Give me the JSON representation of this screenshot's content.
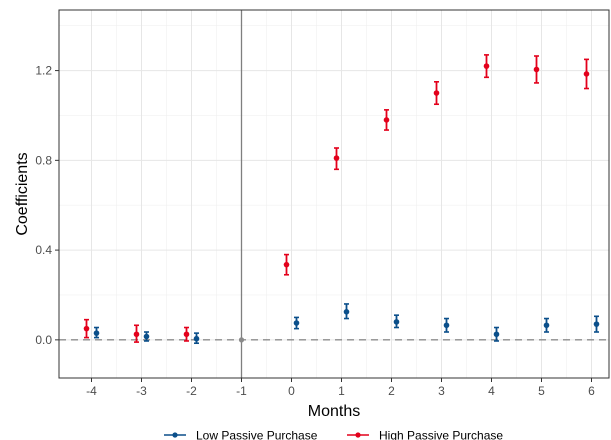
{
  "chart_data": {
    "type": "scatter",
    "xlabel": "Months",
    "ylabel": "Coefficients",
    "x_ticks": [
      -4,
      -3,
      -2,
      -1,
      0,
      1,
      2,
      3,
      4,
      5,
      6
    ],
    "x_tick_labels": [
      "-4",
      "-3",
      "-2",
      "-1",
      "0",
      "1",
      "2",
      "3",
      "4",
      "5",
      "6"
    ],
    "y_ticks": [
      0.0,
      0.4,
      0.8,
      1.2
    ],
    "y_tick_labels": [
      "0.0",
      "0.4",
      "0.8",
      "1.2"
    ],
    "xlim": [
      -4.65,
      6.35
    ],
    "ylim": [
      -0.17,
      1.47
    ],
    "reference_hline": 0,
    "reference_vline": -1,
    "grid": true,
    "legend_position": "bottom",
    "series": [
      {
        "name": "Low Passive Purchase",
        "color": "#0b4f8a",
        "offset": 0.1,
        "points": [
          {
            "x": -4,
            "y": 0.03,
            "lo": 0.01,
            "hi": 0.055
          },
          {
            "x": -3,
            "y": 0.015,
            "lo": -0.005,
            "hi": 0.035
          },
          {
            "x": -2,
            "y": 0.005,
            "lo": -0.015,
            "hi": 0.03
          },
          {
            "x": 0,
            "y": 0.075,
            "lo": 0.05,
            "hi": 0.1
          },
          {
            "x": 1,
            "y": 0.125,
            "lo": 0.095,
            "hi": 0.16
          },
          {
            "x": 2,
            "y": 0.08,
            "lo": 0.055,
            "hi": 0.11
          },
          {
            "x": 3,
            "y": 0.065,
            "lo": 0.035,
            "hi": 0.095
          },
          {
            "x": 4,
            "y": 0.025,
            "lo": -0.005,
            "hi": 0.055
          },
          {
            "x": 5,
            "y": 0.065,
            "lo": 0.035,
            "hi": 0.095
          },
          {
            "x": 6,
            "y": 0.07,
            "lo": 0.035,
            "hi": 0.105
          }
        ]
      },
      {
        "name": "High Passive Purchase",
        "color": "#e3001b",
        "offset": -0.1,
        "points": [
          {
            "x": -4,
            "y": 0.05,
            "lo": 0.01,
            "hi": 0.09
          },
          {
            "x": -3,
            "y": 0.025,
            "lo": -0.01,
            "hi": 0.065
          },
          {
            "x": -2,
            "y": 0.025,
            "lo": -0.005,
            "hi": 0.055
          },
          {
            "x": 0,
            "y": 0.335,
            "lo": 0.29,
            "hi": 0.38
          },
          {
            "x": 1,
            "y": 0.81,
            "lo": 0.76,
            "hi": 0.855
          },
          {
            "x": 2,
            "y": 0.98,
            "lo": 0.935,
            "hi": 1.025
          },
          {
            "x": 3,
            "y": 1.1,
            "lo": 1.05,
            "hi": 1.15
          },
          {
            "x": 4,
            "y": 1.22,
            "lo": 1.17,
            "hi": 1.27
          },
          {
            "x": 5,
            "y": 1.205,
            "lo": 1.145,
            "hi": 1.265
          },
          {
            "x": 6,
            "y": 1.185,
            "lo": 1.12,
            "hi": 1.25
          }
        ]
      }
    ],
    "reference_point": {
      "x": -1,
      "y": 0,
      "color": "#8a8a8a"
    }
  }
}
